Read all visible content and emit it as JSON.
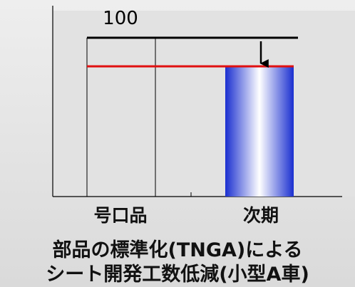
{
  "chart_data": {
    "type": "bar",
    "categories": [
      "号口品",
      "次期"
    ],
    "values": [
      null,
      82
    ],
    "reference_lines": [
      {
        "value": 100,
        "label": "100",
        "color": "#000000"
      },
      {
        "value": 82,
        "label": "",
        "color": "#e01010"
      }
    ],
    "bar_colors": [
      "#1a2fd0",
      "#ffffff"
    ],
    "arrow": {
      "from": 100,
      "to": 82,
      "category": "次期"
    },
    "ylim": [
      0,
      110
    ],
    "grid": false
  },
  "caption": {
    "line1": "部品の標準化(TNGA)による",
    "line2": "シート開発工数低減(小型A車)"
  }
}
